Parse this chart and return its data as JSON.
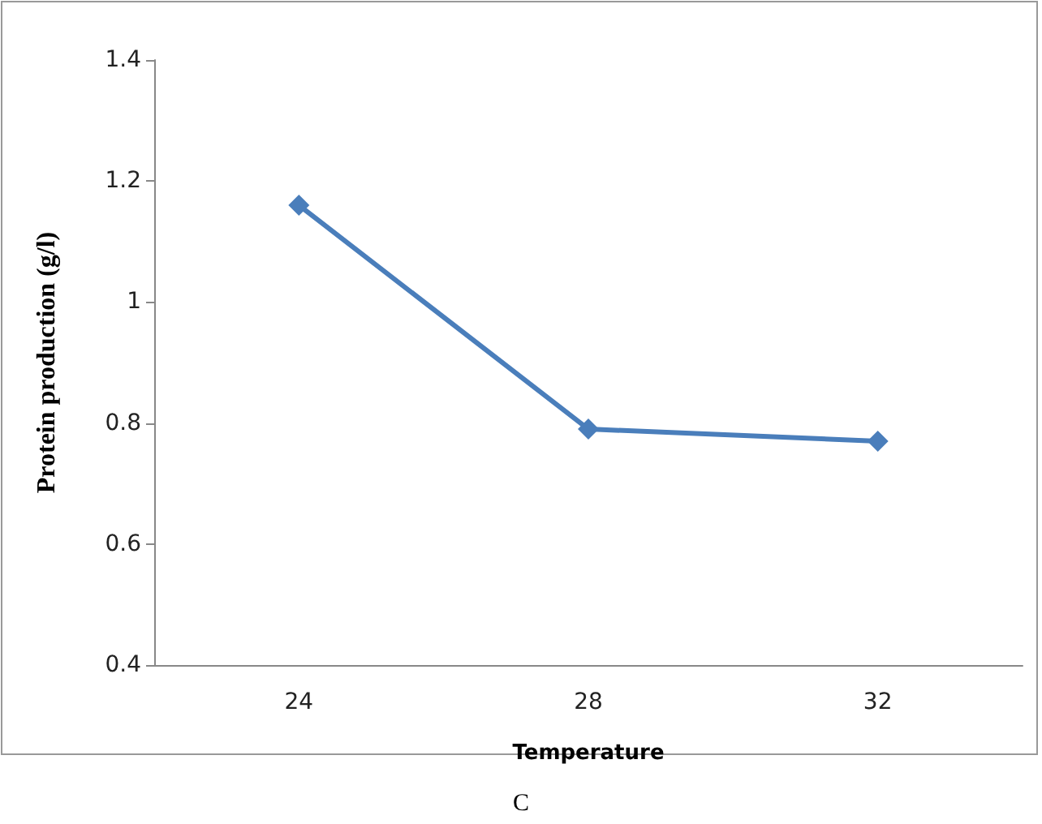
{
  "chart_data": {
    "type": "line",
    "xlabel": "Temperature",
    "ylabel": "Protein production (g/l)",
    "annotations": [
      "C"
    ],
    "categories": [
      "24",
      "28",
      "32"
    ],
    "series": [
      {
        "color": "#4a7ebb",
        "values": [
          1.16,
          0.79,
          0.77
        ]
      }
    ],
    "ylim": [
      0.4,
      1.4
    ],
    "yticks": [
      0.4,
      0.6,
      0.8,
      1,
      1.2,
      1.4
    ],
    "grid": false,
    "marker": "diamond",
    "line_style": "solid"
  }
}
